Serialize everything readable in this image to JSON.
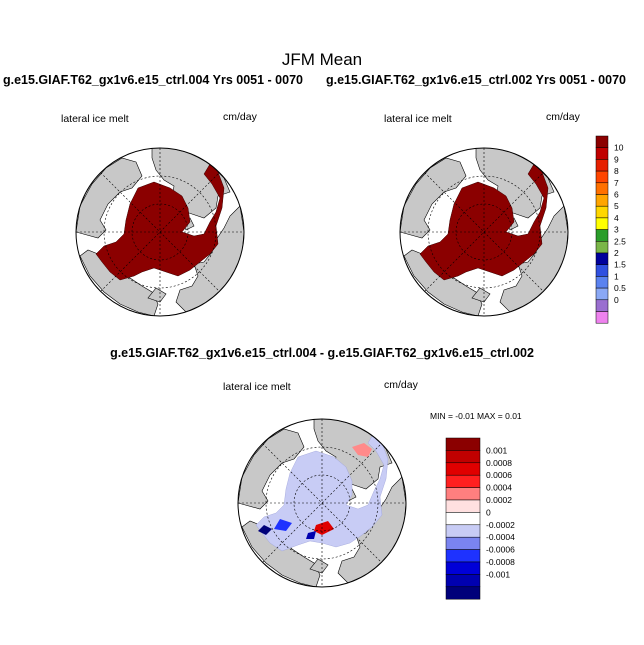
{
  "title": "JFM Mean",
  "panels": [
    {
      "id": "top-left",
      "run_title": "g.e15.GIAF.T62_gx1v6.e15_ctrl.004  Yrs 0051 - 0070",
      "variable": "lateral ice melt",
      "units": "cm/day"
    },
    {
      "id": "top-right",
      "run_title": "g.e15.GIAF.T62_gx1v6.e15_ctrl.002  Yrs 0051 - 0070",
      "variable": "lateral ice melt",
      "units": "cm/day"
    },
    {
      "id": "difference",
      "run_title": "g.e15.GIAF.T62_gx1v6.e15_ctrl.004 - g.e15.GIAF.T62_gx1v6.e15_ctrl.002",
      "variable": "lateral ice melt",
      "units": "cm/day",
      "minmax": "MIN =  -0.01 MAX =   0.01"
    }
  ],
  "colorbar_main": {
    "levels": [
      "10",
      "9",
      "8",
      "7",
      "6",
      "5",
      "4",
      "3",
      "2.5",
      "2",
      "1.5",
      "1",
      "0.5",
      "0"
    ],
    "colors": [
      "#8b0000",
      "#c00000",
      "#e62000",
      "#ff4500",
      "#ff7000",
      "#ffa500",
      "#ffd700",
      "#ffff00",
      "#2a9d2a",
      "#7ab648",
      "#00009c",
      "#3050e0",
      "#5a82f0",
      "#8aa8f5",
      "#9a6fd0",
      "#ee82ee"
    ]
  },
  "colorbar_diff": {
    "levels": [
      "0.001",
      "0.0008",
      "0.0006",
      "0.0004",
      "0.0002",
      "0",
      "-0.0002",
      "-0.0004",
      "-0.0006",
      "-0.0008",
      "-0.001"
    ],
    "colors": [
      "#8b0000",
      "#c00000",
      "#e00000",
      "#ff2020",
      "#ff7f7f",
      "#ffe0e0",
      "#ffffff",
      "#c8ccf5",
      "#7a84f0",
      "#1e32ff",
      "#0000d8",
      "#0000b0",
      "#00007a"
    ]
  },
  "map_colors": {
    "land": "#c8c8c8",
    "ocean": "#ffffff",
    "melt_high": "#8b0000",
    "diff_neutral": "#c8ccf5"
  }
}
